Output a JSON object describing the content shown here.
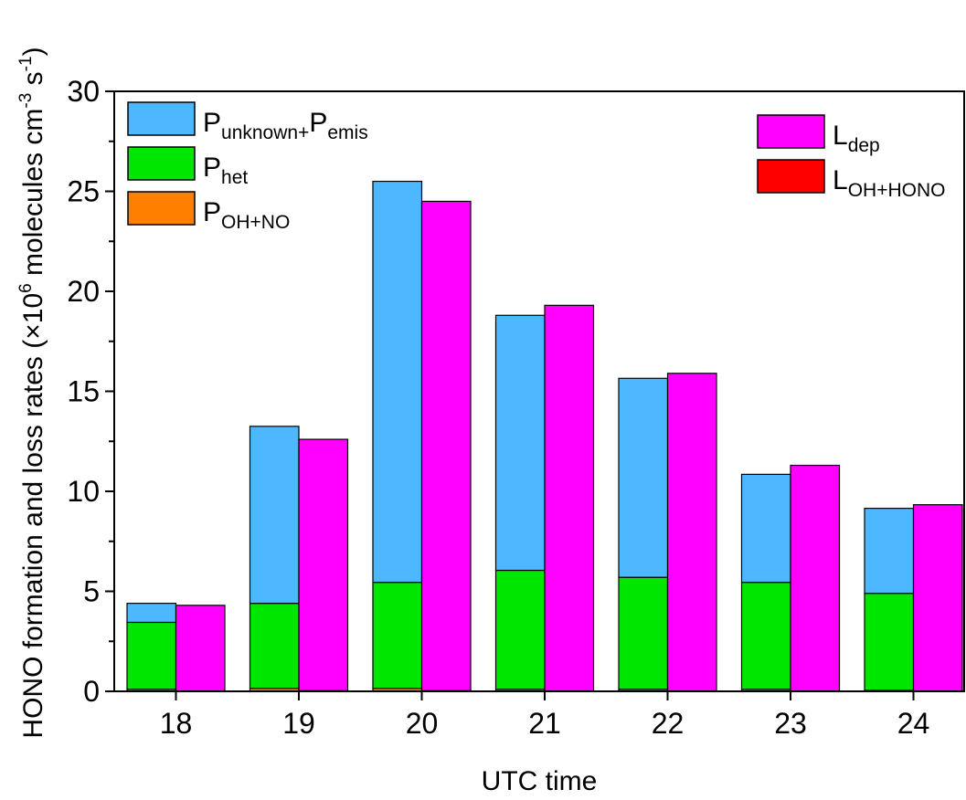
{
  "chart_data": {
    "type": "bar",
    "categories": [
      "18",
      "19",
      "20",
      "21",
      "22",
      "23",
      "24"
    ],
    "xlabel": "UTC time",
    "ylabel": {
      "main": "HONO formation and loss rates (×10",
      "exp6": "6",
      "mid": " molecules cm",
      "exp3": "-3",
      "s": " s",
      "exp1": "-1",
      "close": ")"
    },
    "ylim": [
      0,
      30
    ],
    "yticks": [
      0,
      5,
      10,
      15,
      20,
      25,
      30
    ],
    "grid": false,
    "production_stack": [
      {
        "name": "P_OH+NO",
        "color": "#FF8000",
        "values": [
          0.1,
          0.15,
          0.15,
          0.1,
          0.1,
          0.1,
          0.05
        ]
      },
      {
        "name": "P_het",
        "color": "#00E600",
        "values": [
          3.35,
          4.25,
          5.3,
          5.95,
          5.6,
          5.35,
          4.85
        ]
      },
      {
        "name": "P_unknown+P_emis",
        "color": "#4DB8FF",
        "values": [
          0.95,
          8.85,
          20.05,
          12.75,
          9.95,
          5.4,
          4.25
        ]
      }
    ],
    "loss_stack": [
      {
        "name": "L_OH+HONO",
        "color": "#FF0000",
        "values": [
          0.02,
          0.03,
          0.03,
          0.02,
          0.02,
          0.02,
          0.02
        ]
      },
      {
        "name": "L_dep",
        "color": "#FF00FF",
        "values": [
          4.28,
          12.57,
          24.47,
          19.28,
          15.88,
          11.28,
          9.31
        ]
      }
    ],
    "legend_left": [
      {
        "main": "P",
        "sub": "unknown+",
        "main2": "P",
        "sub2": "emis",
        "color": "#4DB8FF"
      },
      {
        "main": "P",
        "sub": "het",
        "main2": "",
        "sub2": "",
        "color": "#00E600"
      },
      {
        "main": "P",
        "sub": "OH+NO",
        "main2": "",
        "sub2": "",
        "color": "#FF8000"
      }
    ],
    "legend_right": [
      {
        "main": "L",
        "sub": "dep",
        "color": "#FF00FF"
      },
      {
        "main": "L",
        "sub": "OH+HONO",
        "color": "#FF0000"
      }
    ]
  }
}
